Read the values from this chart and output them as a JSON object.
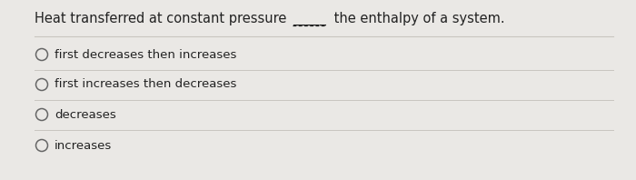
{
  "background_color": "#eae8e5",
  "options": [
    "first decreases then increases",
    "first increases then decreases",
    "decreases",
    "increases"
  ],
  "font_size_question": 10.5,
  "font_size_options": 9.5,
  "text_color": "#222222",
  "line_color": "#c8c5c0",
  "circle_color": "#666666",
  "question_prefix": "Heat transferred at constant pressure ",
  "question_blank": "_____",
  "question_suffix": " the enthalpy of a system."
}
